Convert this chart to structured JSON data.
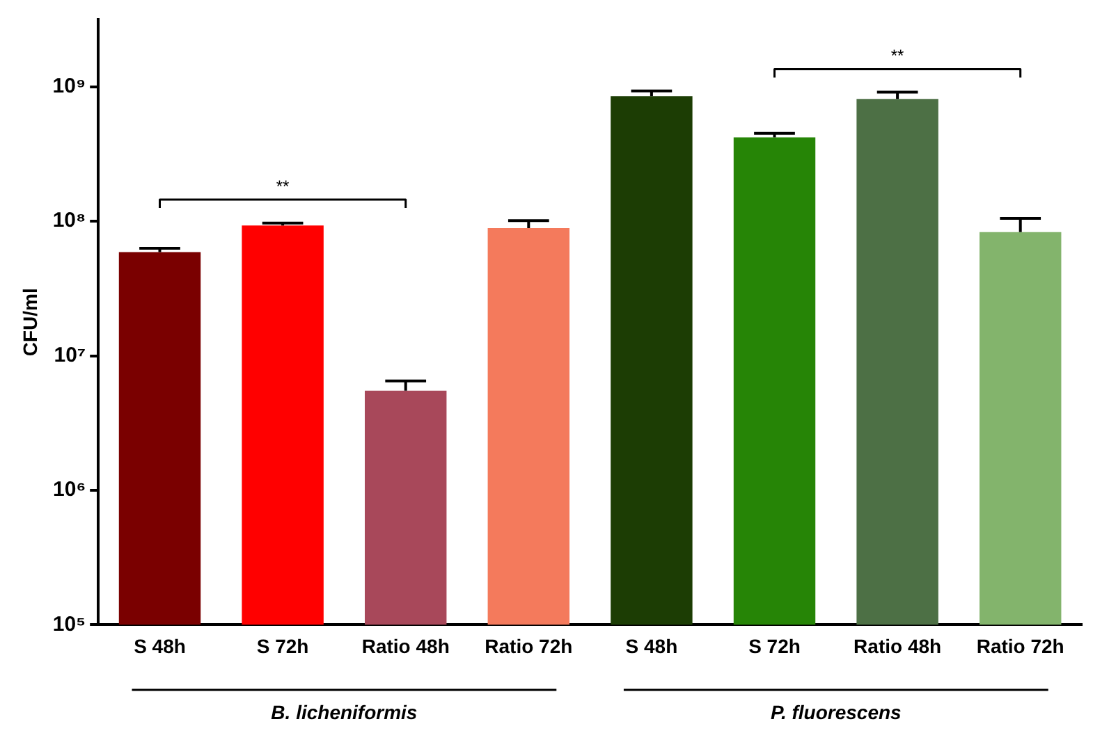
{
  "chart_data": {
    "type": "bar",
    "ylabel": "CFU/ml",
    "categories": [
      "S 48h",
      "S 72h",
      "Ratio 48h",
      "Ratio 72h",
      "S 48h",
      "S 72h",
      "Ratio 48h",
      "Ratio 72h"
    ],
    "values": [
      59000000,
      93000000,
      5500000,
      89000000,
      850000000,
      420000000,
      810000000,
      83000000
    ],
    "errors": [
      [
        59000000,
        63000000
      ],
      [
        93000000,
        97000000
      ],
      [
        5500000,
        6500000
      ],
      [
        89000000,
        101000000
      ],
      [
        850000000,
        930000000
      ],
      [
        420000000,
        450000000
      ],
      [
        810000000,
        910000000
      ],
      [
        83000000,
        105000000
      ]
    ],
    "colors": [
      "#7a0000",
      "#ff0000",
      "#a8485a",
      "#f47a5c",
      "#1c3d04",
      "#268506",
      "#4d7045",
      "#83b46c"
    ],
    "log": true,
    "ylim": [
      100000,
      3160000000
    ],
    "yticks": [
      {
        "value": 100000,
        "label": "10⁵"
      },
      {
        "value": 1000000,
        "label": "10⁶"
      },
      {
        "value": 10000000,
        "label": "10⁷"
      },
      {
        "value": 100000000,
        "label": "10⁸"
      },
      {
        "value": 1000000000,
        "label": "10⁹"
      }
    ],
    "grid": false,
    "legend": false,
    "annotations": [
      "**",
      "**",
      "B. licheniformis",
      "P. fluorescens"
    ]
  }
}
